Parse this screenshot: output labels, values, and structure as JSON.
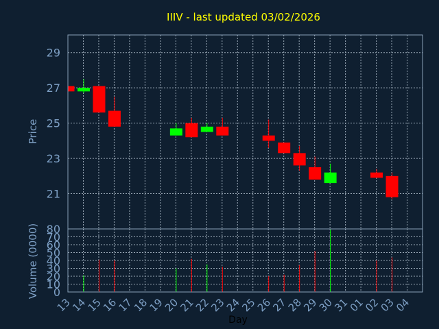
{
  "chart_data": {
    "type": "candlestick",
    "title": "IIIV - last updated 03/02/2026",
    "xlabel": "Day",
    "ylabel_price": "Price",
    "ylabel_volume": "Volume (0000)",
    "price_ylim": [
      19.0,
      30.0
    ],
    "price_ticks": [
      "21",
      "23",
      "25",
      "27",
      "29"
    ],
    "volume_ylim": [
      0,
      80
    ],
    "volume_ticks": [
      "0",
      "10",
      "20",
      "30",
      "40",
      "50",
      "60",
      "70",
      "80"
    ],
    "x_ticks": [
      "13",
      "14",
      "15",
      "16",
      "17",
      "18",
      "19",
      "20",
      "21",
      "22",
      "23",
      "24",
      "25",
      "26",
      "27",
      "28",
      "29",
      "30",
      "31",
      "01",
      "02",
      "03",
      "04"
    ],
    "grid": true,
    "up_color": "#00ff00",
    "down_color": "#ff0000",
    "candles": [
      {
        "day": "13",
        "open": 27.1,
        "high": 27.1,
        "low": 26.8,
        "close": 26.8,
        "volume": 0
      },
      {
        "day": "14",
        "open": 26.8,
        "high": 27.5,
        "low": 26.7,
        "close": 27.0,
        "volume": 21
      },
      {
        "day": "15",
        "open": 27.1,
        "high": 27.1,
        "low": 25.6,
        "close": 25.6,
        "volume": 41
      },
      {
        "day": "16",
        "open": 25.7,
        "high": 26.5,
        "low": 24.8,
        "close": 24.8,
        "volume": 40
      },
      {
        "day": "20",
        "open": 24.3,
        "high": 25.0,
        "low": 24.3,
        "close": 24.7,
        "volume": 30
      },
      {
        "day": "21",
        "open": 25.0,
        "high": 25.3,
        "low": 24.2,
        "close": 24.2,
        "volume": 42
      },
      {
        "day": "22",
        "open": 24.5,
        "high": 25.0,
        "low": 24.5,
        "close": 24.8,
        "volume": 35
      },
      {
        "day": "23",
        "open": 24.8,
        "high": 25.3,
        "low": 24.3,
        "close": 24.3,
        "volume": 32
      },
      {
        "day": "26",
        "open": 24.3,
        "high": 25.2,
        "low": 23.6,
        "close": 24.0,
        "volume": 20
      },
      {
        "day": "27",
        "open": 23.9,
        "high": 23.9,
        "low": 23.3,
        "close": 23.3,
        "volume": 22
      },
      {
        "day": "28",
        "open": 23.3,
        "high": 23.7,
        "low": 22.3,
        "close": 22.6,
        "volume": 34
      },
      {
        "day": "29",
        "open": 22.5,
        "high": 23.1,
        "low": 21.8,
        "close": 21.8,
        "volume": 52
      },
      {
        "day": "30",
        "open": 21.6,
        "high": 22.7,
        "low": 21.6,
        "close": 22.2,
        "volume": 79
      },
      {
        "day": "02",
        "open": 22.2,
        "high": 22.4,
        "low": 21.9,
        "close": 21.9,
        "volume": 40
      },
      {
        "day": "03",
        "open": 22.0,
        "high": 22.2,
        "low": 20.7,
        "close": 20.8,
        "volume": 44
      }
    ]
  }
}
